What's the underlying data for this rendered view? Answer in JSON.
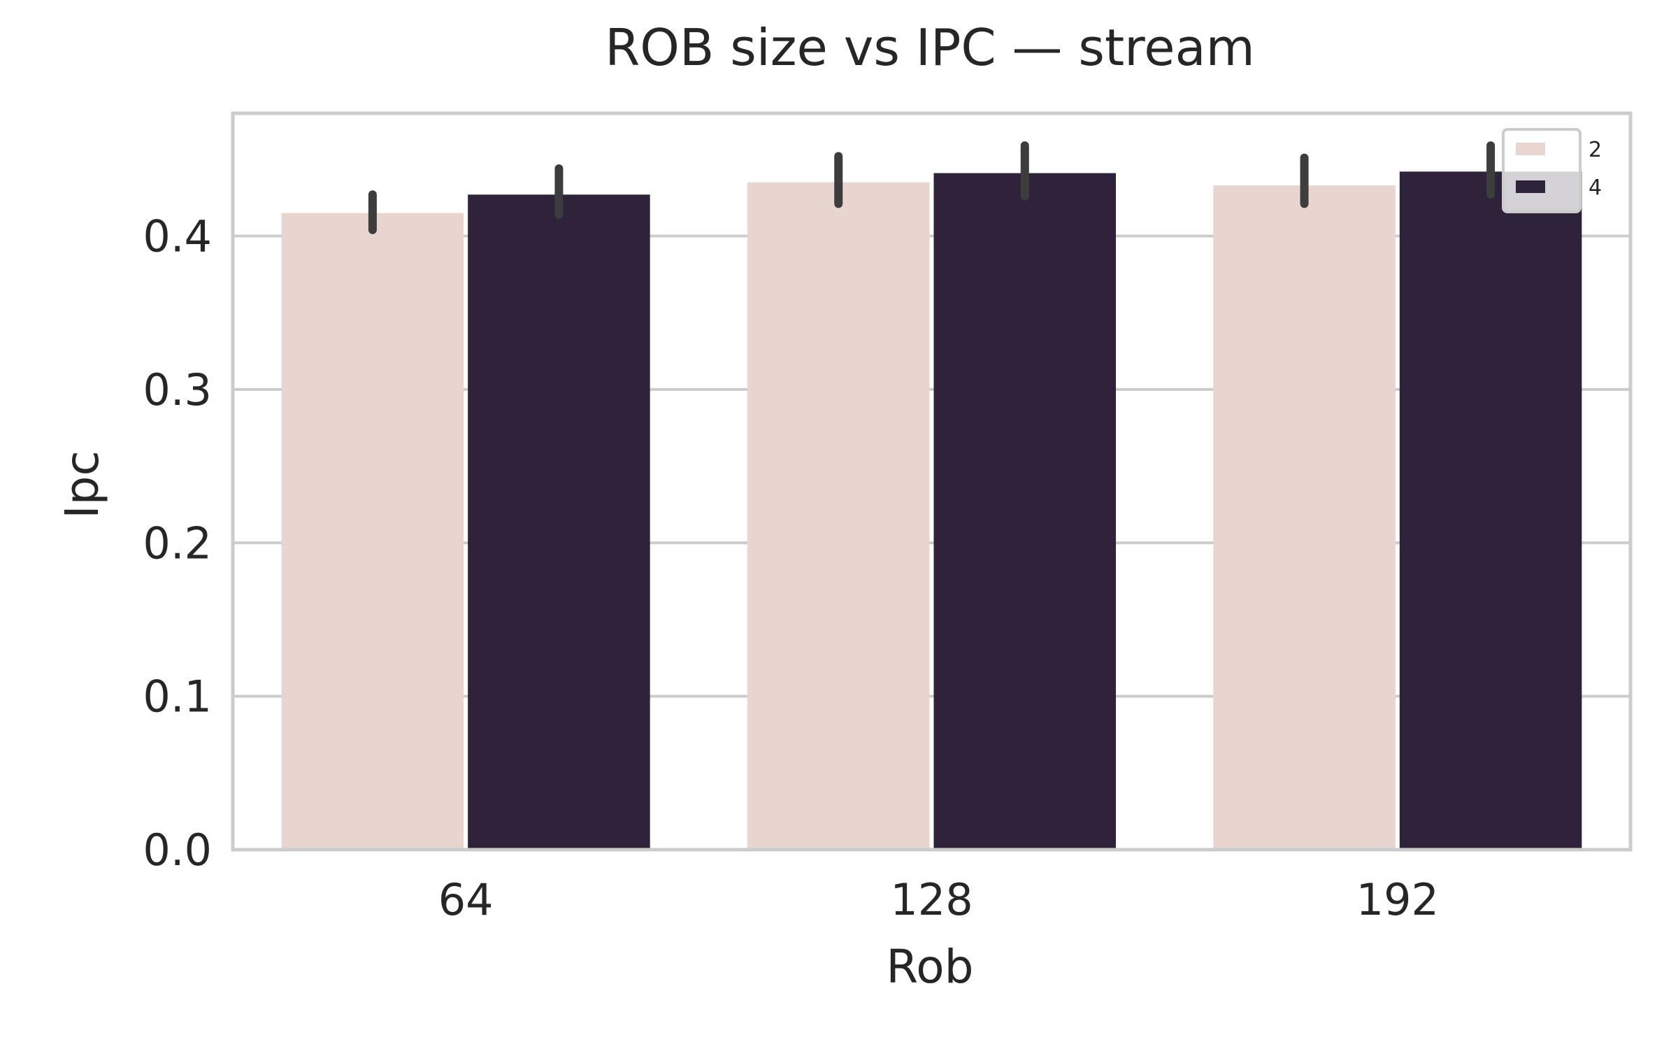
{
  "chart_data": {
    "type": "bar",
    "title": "ROB size vs IPC — stream",
    "xlabel": "Rob",
    "ylabel": "Ipc",
    "categories": [
      "64",
      "128",
      "192"
    ],
    "ylim": [
      0,
      0.48
    ],
    "yticks": [
      "0.0",
      "0.1",
      "0.2",
      "0.3",
      "0.4"
    ],
    "ytick_values": [
      0,
      0.1,
      0.2,
      0.3,
      0.4
    ],
    "grid": "horizontal",
    "legend": {
      "placement": "top-right",
      "entries": [
        "2",
        "4"
      ]
    },
    "series": [
      {
        "name": "2",
        "color": "#e8d5d0",
        "values": [
          0.415,
          0.435,
          0.433
        ],
        "error_low": [
          0.404,
          0.421,
          0.421
        ],
        "error_high": [
          0.427,
          0.452,
          0.451
        ]
      },
      {
        "name": "4",
        "color": "#2f223b",
        "values": [
          0.427,
          0.441,
          0.442
        ],
        "error_low": [
          0.414,
          0.426,
          0.427
        ],
        "error_high": [
          0.444,
          0.459,
          0.459
        ]
      }
    ],
    "colors": {
      "grid": "#cccccc",
      "frame": "#cccccc",
      "errorbar": "#3d3d3d",
      "text": "#262626"
    }
  }
}
